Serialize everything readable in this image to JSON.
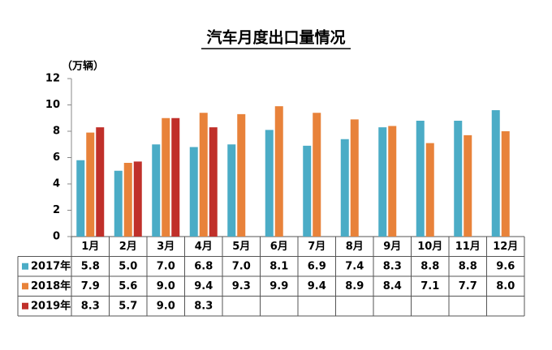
{
  "chart_data": {
    "type": "bar",
    "title": "汽车月度出口量情况",
    "y_axis_label": "（万辆）",
    "categories": [
      "1月",
      "2月",
      "3月",
      "4月",
      "5月",
      "6月",
      "7月",
      "8月",
      "9月",
      "10月",
      "11月",
      "12月"
    ],
    "series": [
      {
        "name": "2017年",
        "color": "#4bacc6",
        "values": [
          5.8,
          5.0,
          7.0,
          6.8,
          7.0,
          8.1,
          6.9,
          7.4,
          8.3,
          8.8,
          8.8,
          9.6
        ],
        "value_labels": [
          "5.8",
          "5.0",
          "7.0",
          "6.8",
          "7.0",
          "8.1",
          "6.9",
          "7.4",
          "8.3",
          "8.8",
          "8.8",
          "9.6"
        ]
      },
      {
        "name": "2018年",
        "color": "#e8823a",
        "values": [
          7.9,
          5.6,
          9.0,
          9.4,
          9.3,
          9.9,
          9.4,
          8.9,
          8.4,
          7.1,
          7.7,
          8.0
        ],
        "value_labels": [
          "7.9",
          "5.6",
          "9.0",
          "9.4",
          "9.3",
          "9.9",
          "9.4",
          "8.9",
          "8.4",
          "7.1",
          "7.7",
          "8.0"
        ]
      },
      {
        "name": "2019年",
        "color": "#c0302a",
        "values": [
          8.3,
          5.7,
          9.0,
          8.3,
          null,
          null,
          null,
          null,
          null,
          null,
          null,
          null
        ],
        "value_labels": [
          "8.3",
          "5.7",
          "9.0",
          "8.3",
          null,
          null,
          null,
          null,
          null,
          null,
          null,
          null
        ]
      }
    ],
    "ylim": [
      0,
      12
    ],
    "yticks": [
      0,
      2,
      4,
      6,
      8,
      10,
      12
    ]
  }
}
